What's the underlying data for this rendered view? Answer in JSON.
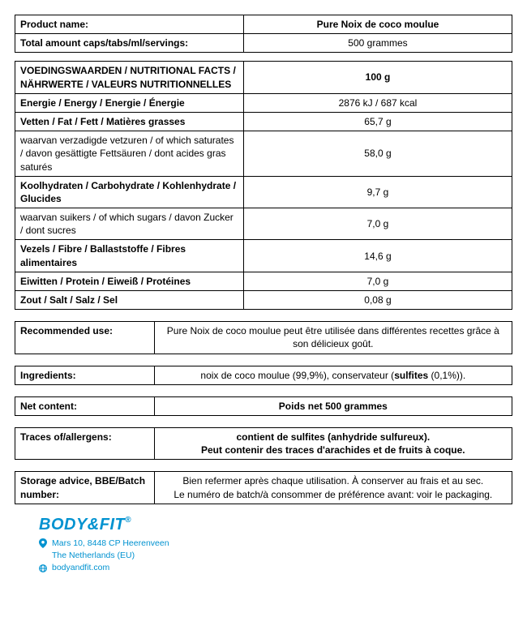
{
  "header": {
    "product_name_label": "Product name:",
    "product_name": "Pure Noix de coco moulue",
    "total_amount_label": "Total amount caps/tabs/ml/servings:",
    "total_amount": "500 grammes"
  },
  "nutrition": {
    "title": "VOEDINGSWAARDEN / NUTRITIONAL FACTS / NÄHRWERTE / VALEURS NUTRITIONNELLES",
    "per": "100 g",
    "rows": [
      {
        "label": "Energie / Energy / Energie / Énergie",
        "value": "2876 kJ / 687 kcal",
        "bold": true
      },
      {
        "label": "Vetten / Fat / Fett / Matières grasses",
        "value": "65,7 g",
        "bold": true
      },
      {
        "label": "waarvan verzadigde vetzuren / of which saturates / davon gesättigte Fettsäuren / dont acides gras saturés",
        "value": "58,0 g",
        "bold": false
      },
      {
        "label": "Koolhydraten / Carbohydrate / Kohlenhydrate / Glucides",
        "value": "9,7 g",
        "bold": true
      },
      {
        "label": "waarvan suikers / of which sugars / davon Zucker / dont sucres",
        "value": "7,0 g",
        "bold": false
      },
      {
        "label": "Vezels / Fibre / Ballaststoffe / Fibres alimentaires",
        "value": "14,6 g",
        "bold": true
      },
      {
        "label": "Eiwitten / Protein / Eiweiß / Protéines",
        "value": "7,0 g",
        "bold": true
      },
      {
        "label": "Zout / Salt / Salz / Sel",
        "value": "0,08 g",
        "bold": true
      }
    ]
  },
  "info": {
    "recommended_label": "Recommended use:",
    "recommended_value": "Pure Noix de coco moulue peut être utilisée dans différentes recettes grâce à son délicieux goût.",
    "ingredients_label": "Ingredients:",
    "ingredients_value_pre": "noix de coco moulue (99,9%), conservateur (",
    "ingredients_value_bold": "sulfites",
    "ingredients_value_post": " (0,1%)).",
    "net_label": "Net content:",
    "net_value": "Poids net 500 grammes",
    "allergens_label": "Traces of/allergens:",
    "allergens_line1": "contient de sulfites (anhydride sulfureux).",
    "allergens_line2": "Peut contenir des traces d'arachides et de fruits à coque.",
    "storage_label": "Storage advice, BBE/Batch number:",
    "storage_line1": "Bien refermer après chaque utilisation.  À conserver au frais et au sec.",
    "storage_line2": "Le numéro de batch/à consommer de préférence avant: voir le packaging."
  },
  "footer": {
    "brand_a": "BODY",
    "brand_amp": "&",
    "brand_b": "FIT",
    "reg": "®",
    "addr1": "Mars 10, 8448 CP   Heerenveen",
    "addr2": "The Netherlands (EU)",
    "site": "bodyandfit.com"
  },
  "style": {
    "brand_color": "#0092d0",
    "border_color": "#000000",
    "bg_color": "#ffffff"
  }
}
